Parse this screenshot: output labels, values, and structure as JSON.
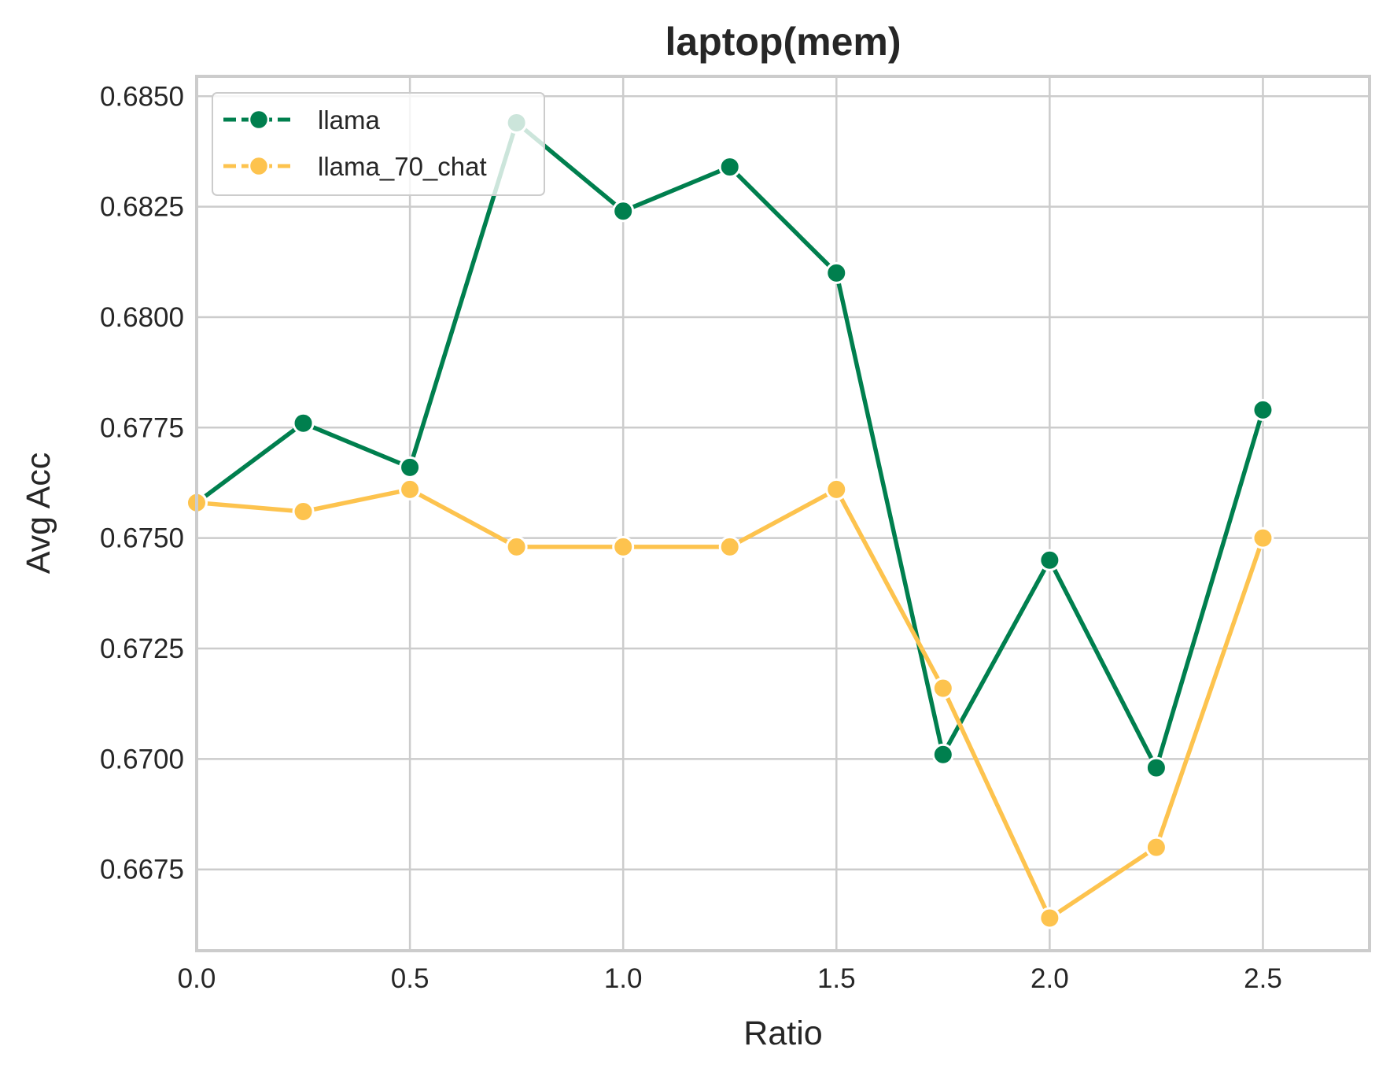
{
  "chart_data": {
    "type": "line",
    "title": "laptop(mem)",
    "xlabel": "Ratio",
    "ylabel": "Avg Acc",
    "xlim": [
      0.0,
      2.75
    ],
    "ylim": [
      0.66566,
      0.68545
    ],
    "xticks": [
      0.0,
      0.5,
      1.0,
      1.5,
      2.0,
      2.5
    ],
    "xtick_labels": [
      "0.0",
      "0.5",
      "1.0",
      "1.5",
      "2.0",
      "2.5"
    ],
    "yticks": [
      0.6675,
      0.67,
      0.6725,
      0.675,
      0.6775,
      0.68,
      0.6825,
      0.685
    ],
    "ytick_labels": [
      "0.6675",
      "0.6700",
      "0.6725",
      "0.6750",
      "0.6775",
      "0.6800",
      "0.6825",
      "0.6850"
    ],
    "grid": true,
    "legend_position": "top-left",
    "x": [
      0.0,
      0.25,
      0.5,
      0.75,
      1.0,
      1.25,
      1.5,
      1.75,
      2.0,
      2.25,
      2.5
    ],
    "series": [
      {
        "name": "llama",
        "color": "#007f4e",
        "values": [
          0.6758,
          0.6776,
          0.6766,
          0.6844,
          0.6824,
          0.6834,
          0.681,
          0.6701,
          0.6745,
          0.6698,
          0.6779
        ]
      },
      {
        "name": "llama_70_chat",
        "color": "#fdc34e",
        "values": [
          0.6758,
          0.6756,
          0.6761,
          0.6748,
          0.6748,
          0.6748,
          0.6761,
          0.6716,
          0.6664,
          0.668,
          0.675
        ]
      }
    ]
  }
}
